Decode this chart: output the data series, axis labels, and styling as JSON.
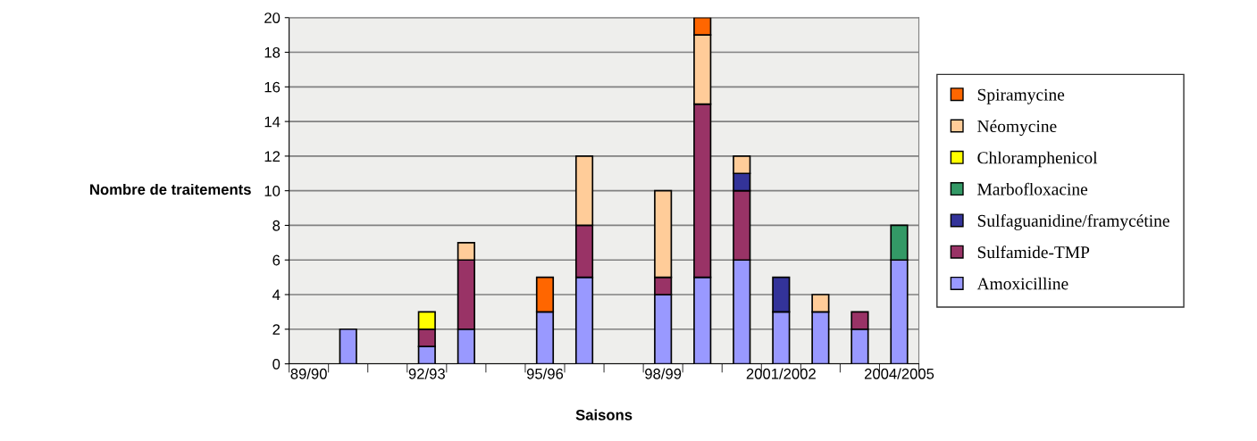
{
  "chart_data": {
    "type": "bar",
    "stacked": true,
    "xlabel": "Saisons",
    "ylabel": "Nombre de traitements",
    "categories": [
      "89/90",
      null,
      null,
      "92/93",
      null,
      null,
      "95/96",
      null,
      null,
      "98/99",
      null,
      null,
      "2001/2002",
      null,
      null,
      "2004/2005"
    ],
    "series": [
      {
        "name": "Amoxicilline",
        "color": "#9999ff",
        "values": [
          null,
          2,
          null,
          1,
          2,
          null,
          3,
          5,
          null,
          4,
          5,
          6,
          3,
          3,
          2,
          6
        ]
      },
      {
        "name": "Sulfamide-TMP",
        "color": "#993366",
        "values": [
          null,
          null,
          null,
          1,
          4,
          null,
          null,
          3,
          null,
          1,
          10,
          4,
          null,
          null,
          1,
          null
        ]
      },
      {
        "name": "Sulfaguanidine/framycétine",
        "color": "#333399",
        "values": [
          null,
          null,
          null,
          null,
          null,
          null,
          null,
          null,
          null,
          null,
          null,
          1,
          2,
          null,
          null,
          null
        ]
      },
      {
        "name": "Marbofloxacine",
        "color": "#339966",
        "values": [
          null,
          null,
          null,
          null,
          null,
          null,
          null,
          null,
          null,
          null,
          null,
          null,
          null,
          null,
          null,
          2
        ]
      },
      {
        "name": "Chloramphenicol",
        "color": "#ffff00",
        "values": [
          null,
          null,
          null,
          1,
          null,
          null,
          null,
          null,
          null,
          null,
          null,
          null,
          null,
          null,
          null,
          null
        ]
      },
      {
        "name": "Néomycine",
        "color": "#ffcc99",
        "values": [
          null,
          null,
          null,
          null,
          1,
          null,
          null,
          4,
          null,
          5,
          4,
          1,
          null,
          1,
          null,
          null
        ]
      },
      {
        "name": "Spiramycine",
        "color": "#ff6600",
        "values": [
          null,
          null,
          null,
          null,
          null,
          null,
          2,
          null,
          null,
          null,
          1,
          null,
          null,
          null,
          null,
          null
        ]
      }
    ],
    "ylim": [
      0,
      20
    ],
    "yticks": [
      0,
      2,
      4,
      6,
      8,
      10,
      12,
      14,
      16,
      18,
      20
    ],
    "grid": "y",
    "legend": "right"
  }
}
